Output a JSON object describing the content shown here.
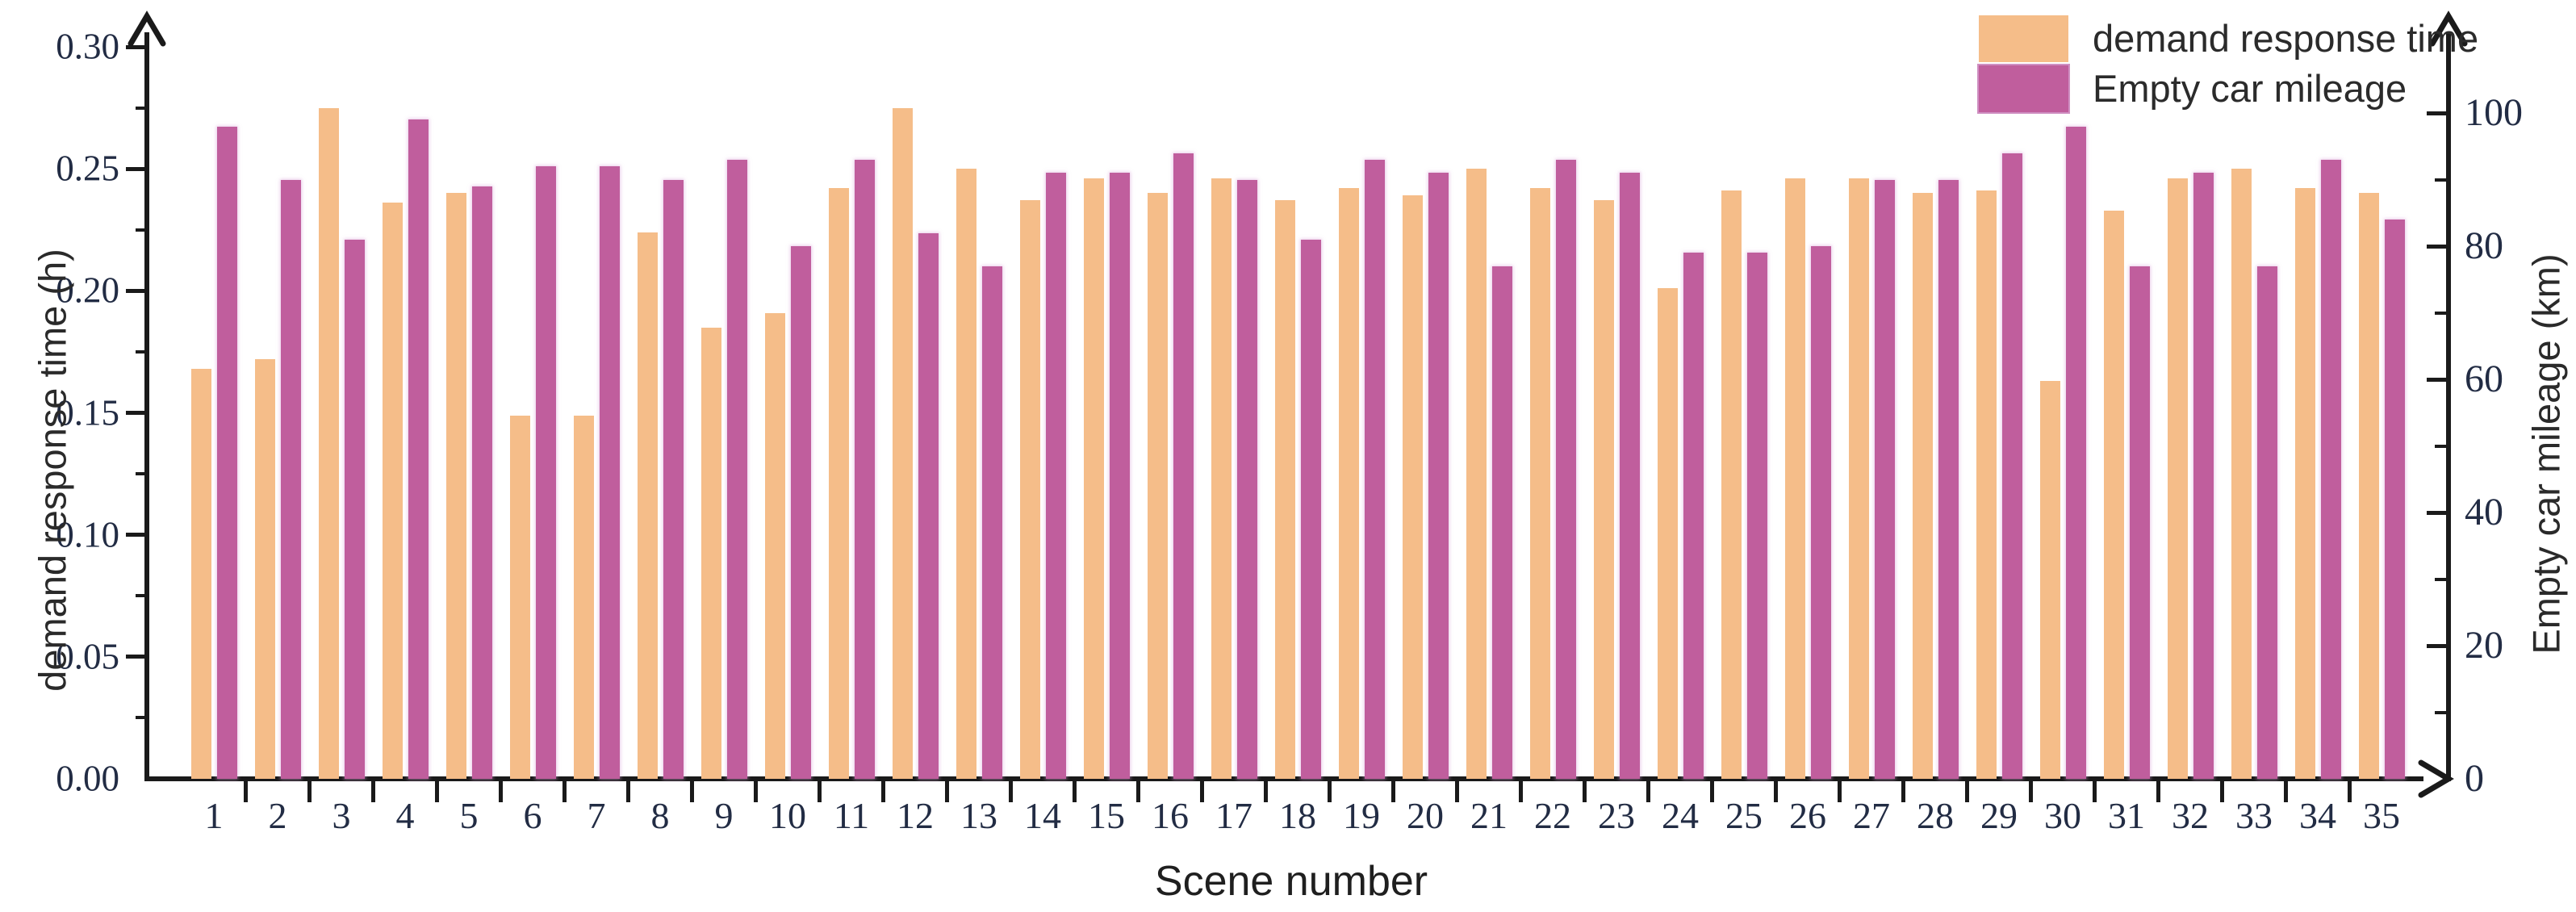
{
  "chart_data": {
    "type": "bar",
    "title": "",
    "xlabel": "Scene number",
    "grid": false,
    "legend": {
      "position": "top-right"
    },
    "categories": [
      "1",
      "2",
      "3",
      "4",
      "5",
      "6",
      "7",
      "8",
      "9",
      "10",
      "11",
      "12",
      "13",
      "14",
      "15",
      "16",
      "17",
      "18",
      "19",
      "20",
      "21",
      "22",
      "23",
      "24",
      "25",
      "26",
      "27",
      "28",
      "29",
      "30",
      "31",
      "32",
      "33",
      "34",
      "35"
    ],
    "series": [
      {
        "name": "demand response time",
        "axis": "left",
        "unit": "h",
        "color": "#F5BD89",
        "values": [
          0.168,
          0.172,
          0.275,
          0.236,
          0.24,
          0.149,
          0.149,
          0.224,
          0.185,
          0.191,
          0.242,
          0.275,
          0.25,
          0.237,
          0.246,
          0.24,
          0.246,
          0.237,
          0.242,
          0.239,
          0.25,
          0.242,
          0.237,
          0.201,
          0.241,
          0.246,
          0.246,
          0.24,
          0.241,
          0.163,
          0.233,
          0.246,
          0.25,
          0.242,
          0.24
        ]
      },
      {
        "name": "Empty car mileage",
        "axis": "right",
        "unit": "km",
        "color": "#C05E9D",
        "values": [
          98,
          90,
          81,
          99,
          89,
          92,
          92,
          90,
          93,
          80,
          93,
          82,
          77,
          91,
          91,
          94,
          90,
          81,
          93,
          91,
          77,
          93,
          91,
          79,
          79,
          80,
          90,
          90,
          94,
          98,
          77,
          91,
          77,
          93,
          84
        ]
      }
    ],
    "left_axis": {
      "label": "demand response time (h)",
      "min": 0.0,
      "max": 0.3,
      "major_step": 0.05,
      "minor_step": 0.025,
      "tick_labels": [
        "0.00",
        "0.05",
        "0.10",
        "0.15",
        "0.20",
        "0.25",
        "0.30"
      ]
    },
    "right_axis": {
      "label": "Empty car mileage  (km)",
      "min": 0,
      "max": 110,
      "major_step": 20,
      "minor_step": 10,
      "tick_labels": [
        "0",
        "20",
        "40",
        "60",
        "80",
        "100"
      ]
    }
  }
}
